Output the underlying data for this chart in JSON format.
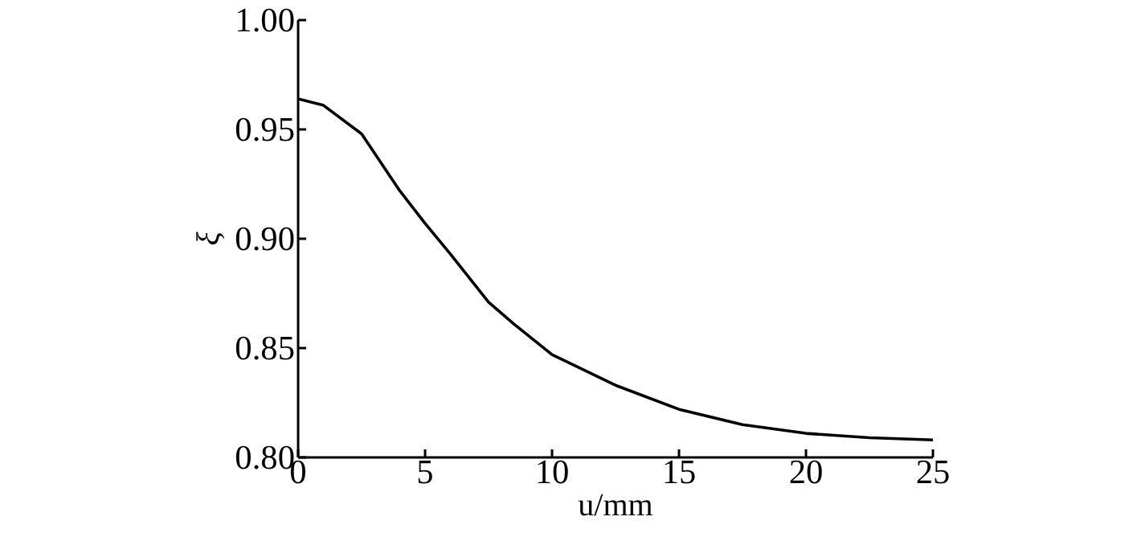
{
  "chart_data": {
    "type": "line",
    "xlabel": "u/mm",
    "ylabel": "ξ",
    "xlim": [
      0,
      25
    ],
    "ylim": [
      0.8,
      1.0
    ],
    "xticks": [
      0,
      5,
      10,
      15,
      20,
      25
    ],
    "yticks": [
      {
        "value": 0.8,
        "label": "0.80"
      },
      {
        "value": 0.85,
        "label": "0.85"
      },
      {
        "value": 0.9,
        "label": "0.90"
      },
      {
        "value": 0.95,
        "label": "0.95"
      },
      {
        "value": 1.0,
        "label": "1.00"
      }
    ],
    "grid": false,
    "series": [
      {
        "color": "#000000",
        "x": [
          0,
          1,
          2.5,
          4,
          5,
          6,
          7.5,
          8.5,
          10,
          12.5,
          15,
          17.5,
          20,
          22.5,
          25
        ],
        "values": [
          0.964,
          0.961,
          0.948,
          0.922,
          0.907,
          0.893,
          0.871,
          0.861,
          0.847,
          0.833,
          0.822,
          0.815,
          0.811,
          0.809,
          0.808
        ]
      }
    ]
  }
}
